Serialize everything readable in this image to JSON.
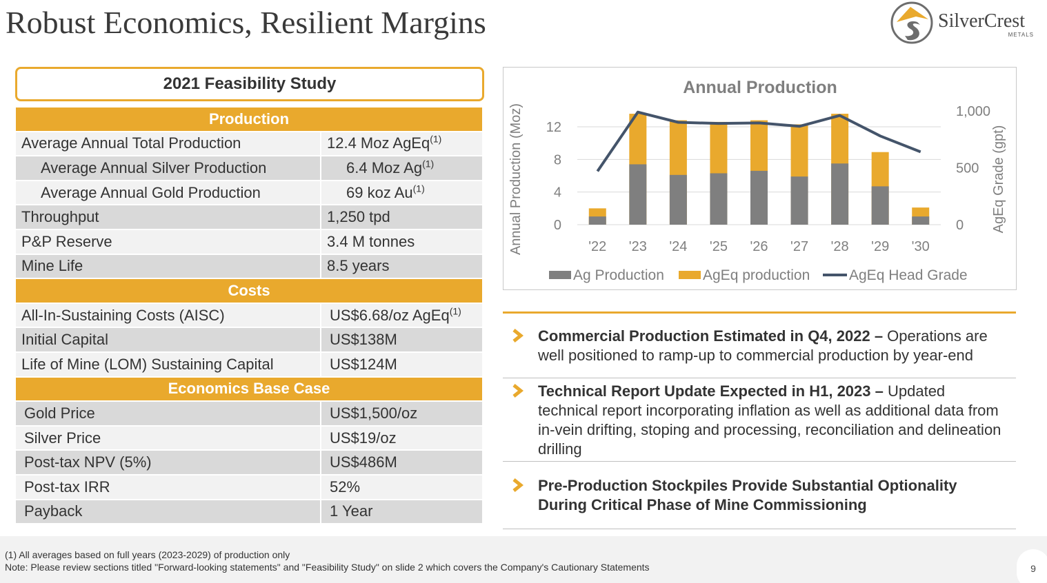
{
  "header": {
    "title": "Robust Economics, Resilient Margins",
    "logo_name": "SilverCrest",
    "logo_sub": "METALS"
  },
  "study": {
    "title": "2021 Feasibility Study",
    "production_header": "Production",
    "costs_header": "Costs",
    "economics_header": "Economics Base Case",
    "production": [
      {
        "label": "Average Annual Total Production",
        "value": "12.4 Moz AgEq",
        "sup": "(1)"
      },
      {
        "label": "Average Annual Silver Production",
        "value": "6.4 Moz Ag",
        "sup": "(1)"
      },
      {
        "label": "Average Annual Gold Production",
        "value": "69 koz Au",
        "sup": "(1)"
      },
      {
        "label": "Throughput",
        "value": "1,250 tpd"
      },
      {
        "label": "P&P Reserve",
        "value": "3.4 M tonnes"
      },
      {
        "label": "Mine Life",
        "value": "8.5 years"
      }
    ],
    "costs": [
      {
        "label": "All-In-Sustaining Costs (AISC)",
        "value": "US$6.68/oz AgEq",
        "sup": "(1)"
      },
      {
        "label": "Initial Capital",
        "value": "US$138M"
      },
      {
        "label": "Life of Mine (LOM) Sustaining Capital",
        "value": "US$124M"
      }
    ],
    "economics": [
      {
        "label": "Gold Price",
        "value": "US$1,500/oz"
      },
      {
        "label": "Silver Price",
        "value": "US$19/oz"
      },
      {
        "label": "Post-tax NPV (5%)",
        "value": "US$486M"
      },
      {
        "label": "Post-tax IRR",
        "value": "52%"
      },
      {
        "label": "Payback",
        "value": "1 Year"
      }
    ]
  },
  "chart_data": {
    "type": "bar",
    "title": "Annual Production",
    "ylabel": "Annual Production (Moz)",
    "y2label": "AgEq Grade (gpt)",
    "categories": [
      "'22",
      "'23",
      "'24",
      "'25",
      "'26",
      "'27",
      "'28",
      "'29",
      "'30"
    ],
    "ylim": [
      0,
      14
    ],
    "y2lim": [
      0,
      1000
    ],
    "yticks": [
      "0",
      "4",
      "8",
      "12"
    ],
    "y2ticks": [
      "0",
      "500",
      "1,000"
    ],
    "series": [
      {
        "name": "Ag Production",
        "kind": "bar",
        "color": "#7f7f7f",
        "values": [
          1.0,
          7.4,
          6.1,
          6.3,
          6.6,
          5.9,
          7.5,
          4.7,
          1.0
        ]
      },
      {
        "name": "AgEq production",
        "kind": "bar",
        "color": "#e9a92d",
        "values": [
          2.0,
          13.6,
          12.8,
          12.6,
          12.8,
          12.3,
          13.6,
          8.9,
          2.1
        ]
      },
      {
        "name": "AgEq Head Grade",
        "kind": "line",
        "color": "#44546a",
        "values": [
          470,
          990,
          900,
          890,
          895,
          865,
          960,
          780,
          640
        ]
      }
    ],
    "legend": "bottom",
    "grid": true
  },
  "bullets": [
    {
      "bold": "Commercial Production Estimated in Q4, 2022 –",
      "text": " Operations are well positioned to ramp-up to commercial production by year-end"
    },
    {
      "bold": "Technical Report Update Expected in H1, 2023 –",
      "text": " Updated technical report incorporating inflation as well as additional data from in-vein drifting, stoping and processing, reconciliation and delineation drilling"
    },
    {
      "bold": "Pre-Production Stockpiles Provide Substantial Optionality During Critical Phase of Mine Commissioning",
      "text": ""
    }
  ],
  "footer": {
    "note1": "(1) All averages based on full years (2023-2029) of production only",
    "note2": "Note: Please review sections titled \"Forward-looking statements\" and \"Feasibility Study\" on slide 2 which covers the Company's Cautionary Statements",
    "page": "9"
  },
  "colors": {
    "gold": "#e9a92d",
    "grey_bar": "#7f7f7f",
    "line": "#44546a"
  }
}
